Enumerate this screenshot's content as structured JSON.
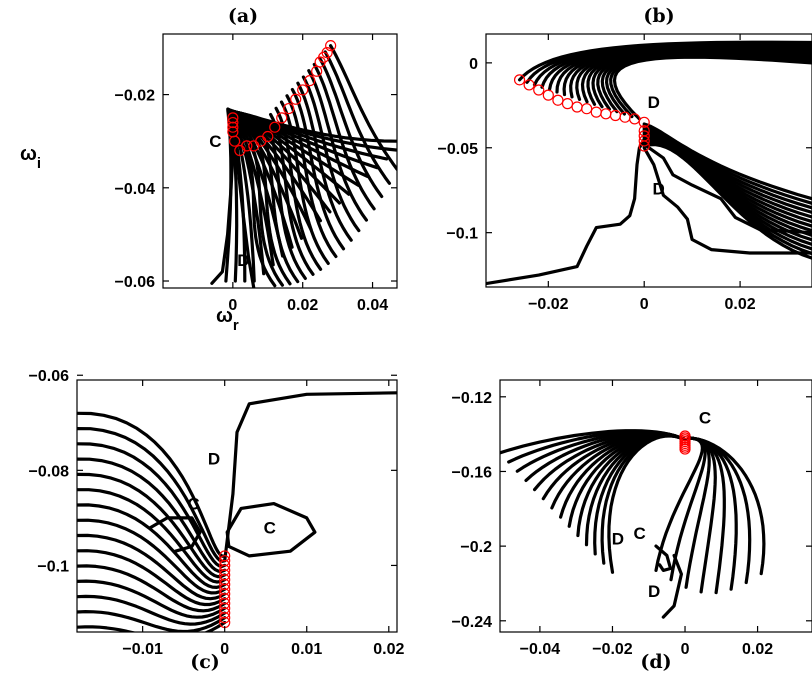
{
  "chart_data": [
    {
      "panel_label": "(a)",
      "type": "line",
      "xlim": [
        -0.02,
        0.047
      ],
      "ylim": [
        -0.0615,
        -0.007
      ],
      "xticks": [
        0,
        0.02,
        0.04
      ],
      "yticks": [
        -0.02,
        -0.04,
        -0.06
      ],
      "xtick_labels": [
        "0",
        "0.02",
        "0.04"
      ],
      "ytick_labels": [
        "−0.02",
        "−0.04",
        "−0.06"
      ],
      "xlabel_main": "ω",
      "xlabel_sub": "r",
      "ylabel_main": "ω",
      "ylabel_sub": "i",
      "annotations": [
        {
          "text": "C",
          "x": -0.005,
          "y": -0.03
        },
        {
          "text": "D",
          "x": 0.003,
          "y": -0.0555
        }
      ],
      "start_points": {
        "x": [
          0,
          0,
          0,
          0,
          0.0005,
          0.002,
          0.004,
          0.006,
          0.008,
          0.01,
          0.012,
          0.014,
          0.016,
          0.018,
          0.02,
          0.022,
          0.024,
          0.025,
          0.026,
          0.027,
          0.028
        ],
        "y": [
          -0.025,
          -0.026,
          -0.027,
          -0.028,
          -0.03,
          -0.032,
          -0.031,
          -0.031,
          -0.03,
          -0.029,
          -0.027,
          -0.025,
          -0.023,
          -0.021,
          -0.019,
          -0.017,
          -0.015,
          -0.013,
          -0.012,
          -0.011,
          -0.0095
        ]
      },
      "fan_end": {
        "x0": -0.002,
        "x1": 0.047,
        "y0": -0.06,
        "y1": -0.03
      }
    },
    {
      "panel_label": "(b)",
      "type": "line",
      "xlim": [
        -0.033,
        0.035
      ],
      "ylim": [
        -0.132,
        0.017
      ],
      "xticks": [
        -0.02,
        0,
        0.02
      ],
      "yticks": [
        0,
        -0.05,
        -0.1
      ],
      "xtick_labels": [
        "−0.02",
        "0",
        "0.02"
      ],
      "ytick_labels": [
        "0",
        "−0.05",
        "−0.1"
      ],
      "annotations": [
        {
          "text": "D",
          "x": 0.002,
          "y": -0.023
        },
        {
          "text": "D",
          "x": 0.003,
          "y": -0.074
        }
      ],
      "start_points": {
        "x": [
          -0.026,
          -0.024,
          -0.022,
          -0.02,
          -0.018,
          -0.016,
          -0.014,
          -0.012,
          -0.01,
          -0.008,
          -0.006,
          -0.004,
          -0.002,
          0,
          0,
          0,
          0,
          0
        ],
        "y": [
          -0.01,
          -0.013,
          -0.016,
          -0.019,
          -0.022,
          -0.024,
          -0.026,
          -0.027,
          -0.029,
          -0.03,
          -0.031,
          -0.032,
          -0.033,
          -0.035,
          -0.04,
          -0.043,
          -0.046,
          -0.049
        ]
      }
    },
    {
      "panel_label": "(c)",
      "type": "line",
      "xlim": [
        -0.018,
        0.021
      ],
      "ylim": [
        -0.114,
        -0.061
      ],
      "xticks": [
        -0.01,
        0,
        0.01,
        0.02
      ],
      "yticks": [
        -0.06,
        -0.08,
        -0.1
      ],
      "xtick_labels": [
        "−0.01",
        "0",
        "0.01",
        "0.02"
      ],
      "ytick_labels": [
        "−0.06",
        "−0.08",
        "−0.1"
      ],
      "annotations": [
        {
          "text": "D",
          "x": -0.0013,
          "y": -0.0775
        },
        {
          "text": "C",
          "x": -0.0038,
          "y": -0.087
        },
        {
          "text": "C",
          "x": 0.0055,
          "y": -0.092
        }
      ],
      "start_points": {
        "x": [
          0,
          0,
          0,
          0,
          0,
          0,
          0,
          0,
          0,
          0,
          0,
          0,
          0,
          0,
          0
        ],
        "y": [
          -0.098,
          -0.099,
          -0.1,
          -0.101,
          -0.102,
          -0.103,
          -0.104,
          -0.105,
          -0.106,
          -0.107,
          -0.108,
          -0.109,
          -0.11,
          -0.111,
          -0.112
        ]
      }
    },
    {
      "panel_label": "(d)",
      "type": "line",
      "xlim": [
        -0.051,
        0.035
      ],
      "ylim": [
        -0.246,
        -0.111
      ],
      "xticks": [
        -0.04,
        -0.02,
        0,
        0.02
      ],
      "yticks": [
        -0.12,
        -0.16,
        -0.2,
        -0.24
      ],
      "xtick_labels": [
        "−0.04",
        "−0.02",
        "0",
        "0.02"
      ],
      "ytick_labels": [
        "−0.12",
        "−0.16",
        "−0.2",
        "−0.24"
      ],
      "annotations": [
        {
          "text": "C",
          "x": 0.0055,
          "y": -0.131
        },
        {
          "text": "D",
          "x": -0.0185,
          "y": -0.196
        },
        {
          "text": "C",
          "x": -0.0125,
          "y": -0.193
        },
        {
          "text": "D",
          "x": -0.0085,
          "y": -0.224
        }
      ],
      "start_points": {
        "x": [
          0,
          0,
          0,
          0,
          0,
          0,
          0,
          0
        ],
        "y": [
          -0.141,
          -0.142,
          -0.143,
          -0.144,
          -0.145,
          -0.146,
          -0.147,
          -0.148
        ]
      }
    }
  ],
  "colors": {
    "curve": "#000000",
    "marker": "#ff0000"
  }
}
